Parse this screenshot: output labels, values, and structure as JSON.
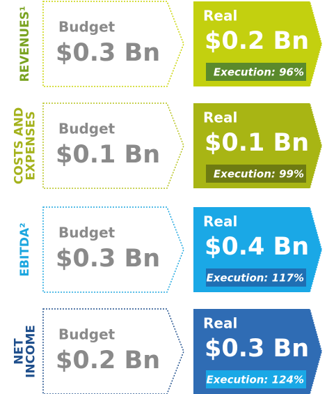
{
  "rows": [
    {
      "label": [
        "REVENUES¹"
      ],
      "budget_label": "Budget",
      "budget": "$0.3 Bn",
      "real_label": "Real",
      "real": "$0.2 Bn",
      "execution": "Execution: 96%"
    },
    {
      "label": [
        "COSTS AND",
        "EXPENSES"
      ],
      "budget_label": "Budget",
      "budget": "$0.1 Bn",
      "real_label": "Real",
      "real": "$0.1 Bn",
      "execution": "Execution: 99%"
    },
    {
      "label": [
        "EBITDA²"
      ],
      "budget_label": "Budget",
      "budget": "$0.3 Bn",
      "real_label": "Real",
      "real": "$0.4 Bn",
      "execution": "Execution: 117%"
    },
    {
      "label": [
        "NET",
        "INCOME"
      ],
      "budget_label": "Budget",
      "budget": "$0.2 Bn",
      "real_label": "Real",
      "real": "$0.3 Bn",
      "execution": "Execution: 124%"
    }
  ]
}
